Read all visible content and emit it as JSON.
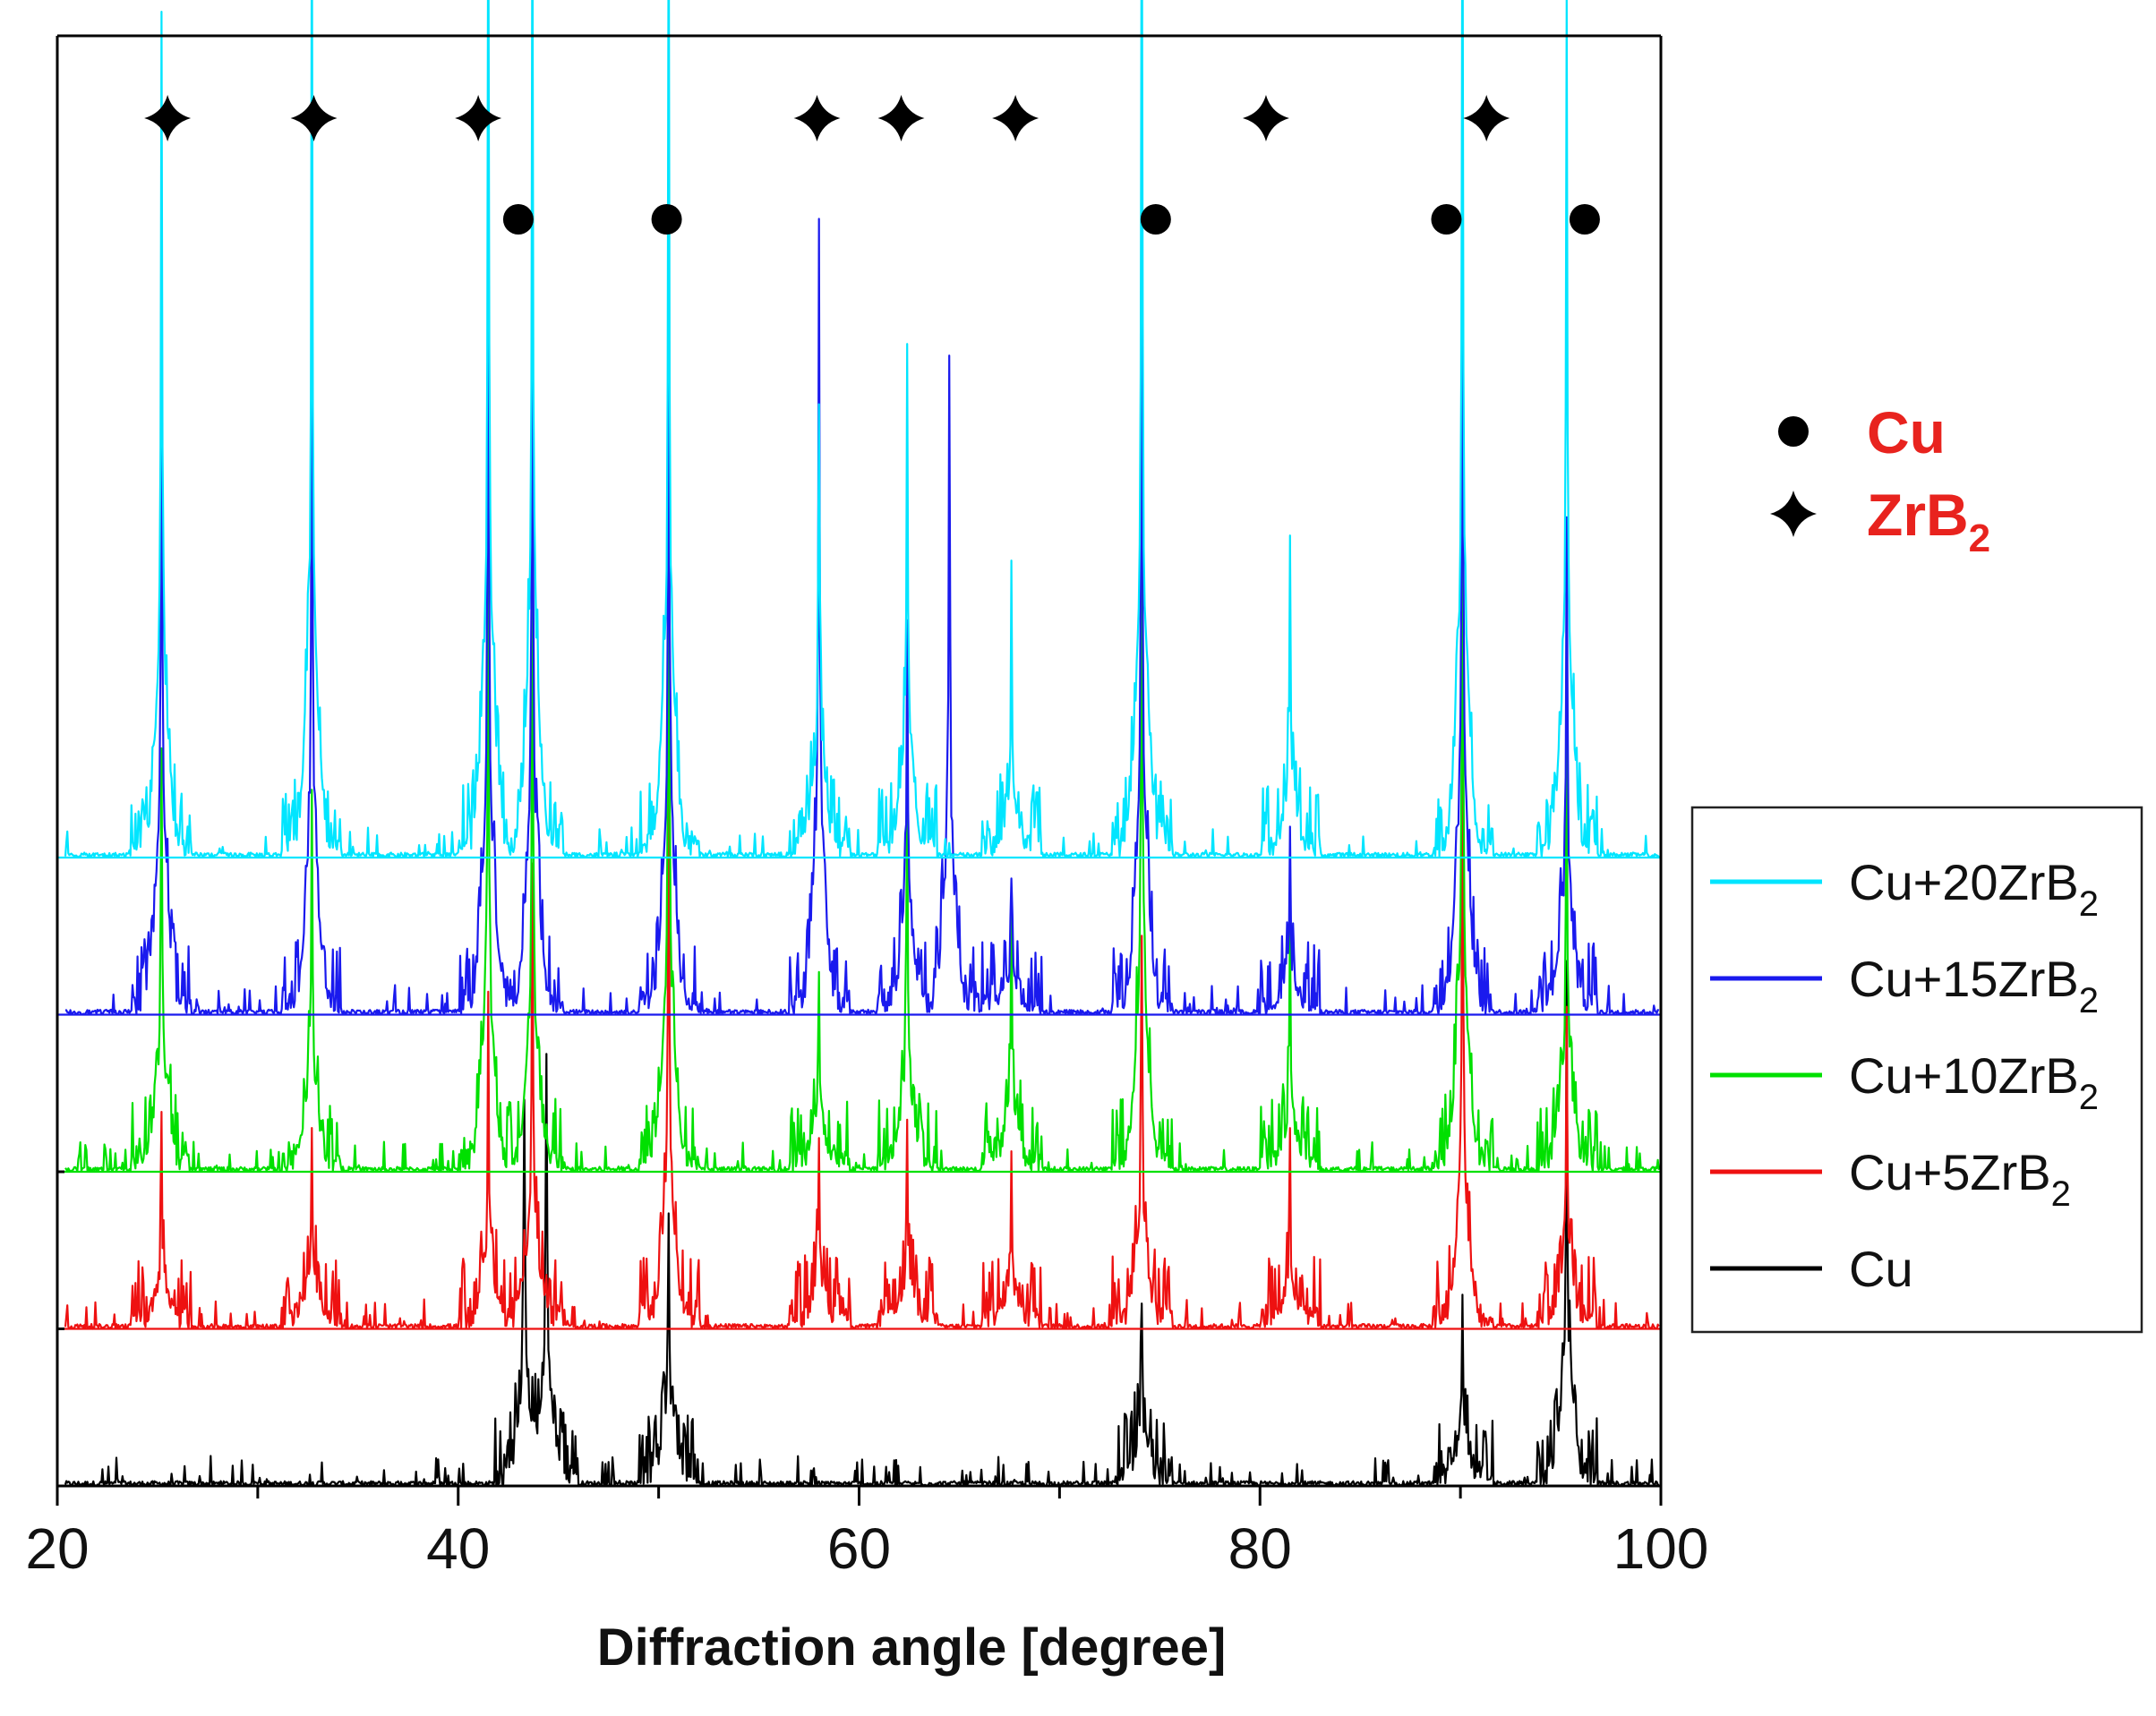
{
  "chart_data": {
    "type": "line",
    "title": "",
    "xlabel": "Diffraction angle  [degree]",
    "ylabel": "",
    "xlim": [
      20,
      100
    ],
    "xticks": [
      "20",
      "40",
      "60",
      "80",
      "100"
    ],
    "grid": false,
    "legend_position": "right",
    "series_note": "XRD patterns stacked vertically with offsets; peak heights are relative intensity (baseline = 0, tallest peak = 1)",
    "series": [
      {
        "name": "Cu+20ZrB2",
        "label_main": "Cu+20ZrB",
        "label_sub": "2",
        "color": "#00e5ff",
        "offset": 0.52,
        "peaks": [
          [
            25.2,
            0.62
          ],
          [
            32.7,
            0.71
          ],
          [
            41.5,
            0.75
          ],
          [
            43.7,
            0.74
          ],
          [
            50.5,
            0.72
          ],
          [
            58.0,
            0.33
          ],
          [
            62.4,
            0.38
          ],
          [
            67.6,
            0.17
          ],
          [
            74.1,
            0.75
          ],
          [
            81.5,
            0.2
          ],
          [
            90.1,
            0.76
          ],
          [
            95.3,
            0.64
          ]
        ]
      },
      {
        "name": "Cu+15ZrB2",
        "label_main": "Cu+15ZrB",
        "label_sub": "2",
        "color": "#1a1aee",
        "offset": 0.39,
        "peaks": [
          [
            25.2,
            0.56
          ],
          [
            32.7,
            0.55
          ],
          [
            41.5,
            0.62
          ],
          [
            43.7,
            0.62
          ],
          [
            50.5,
            0.58
          ],
          [
            58.0,
            0.57
          ],
          [
            62.4,
            0.29
          ],
          [
            64.5,
            0.48
          ],
          [
            67.6,
            0.1
          ],
          [
            74.1,
            0.64
          ],
          [
            81.5,
            0.11
          ],
          [
            90.1,
            0.68
          ],
          [
            95.3,
            0.36
          ]
        ]
      },
      {
        "name": "Cu+10ZrB2",
        "label_main": "Cu+10ZrB",
        "label_sub": "2",
        "color": "#00e000",
        "offset": 0.26,
        "peaks": [
          [
            25.2,
            0.31
          ],
          [
            32.7,
            0.28
          ],
          [
            41.5,
            0.47
          ],
          [
            43.7,
            0.46
          ],
          [
            50.5,
            0.56
          ],
          [
            58.0,
            0.14
          ],
          [
            62.4,
            0.27
          ],
          [
            67.6,
            0.19
          ],
          [
            74.1,
            0.55
          ],
          [
            81.5,
            0.14
          ],
          [
            90.1,
            0.58
          ],
          [
            95.3,
            0.32
          ]
        ]
      },
      {
        "name": "Cu+5ZrB2",
        "label_main": "Cu+5ZrB",
        "label_sub": "2",
        "color": "#ee1111",
        "offset": 0.13,
        "peaks": [
          [
            25.2,
            0.12
          ],
          [
            32.7,
            0.14
          ],
          [
            41.5,
            0.2
          ],
          [
            43.7,
            0.34
          ],
          [
            50.5,
            0.45
          ],
          [
            58.0,
            0.13
          ],
          [
            62.4,
            0.12
          ],
          [
            67.6,
            0.1
          ],
          [
            74.1,
            0.28
          ],
          [
            81.5,
            0.1
          ],
          [
            90.1,
            0.42
          ],
          [
            95.3,
            0.22
          ]
        ]
      },
      {
        "name": "Cu",
        "label_main": "Cu",
        "label_sub": "",
        "color": "#000000",
        "offset": 0.0,
        "peaks": [
          [
            43.3,
            0.29
          ],
          [
            44.4,
            0.32
          ],
          [
            50.5,
            0.2
          ],
          [
            74.1,
            0.13
          ],
          [
            90.1,
            0.14
          ],
          [
            95.3,
            0.35
          ]
        ]
      }
    ],
    "phase_markers": [
      {
        "phase": "ZrB2",
        "symbol": "star",
        "x": [
          25.5,
          32.8,
          41.0,
          57.9,
          62.1,
          67.8,
          80.3,
          91.3
        ]
      },
      {
        "phase": "Cu",
        "symbol": "circle",
        "x": [
          43.0,
          50.4,
          74.8,
          89.3,
          96.2
        ]
      }
    ],
    "phase_legend": [
      {
        "symbol": "circle",
        "label_main": "Cu",
        "label_sub": "",
        "color": "#e8231e"
      },
      {
        "symbol": "star",
        "label_main": "ZrB",
        "label_sub": "2",
        "color": "#e8231e"
      }
    ]
  }
}
